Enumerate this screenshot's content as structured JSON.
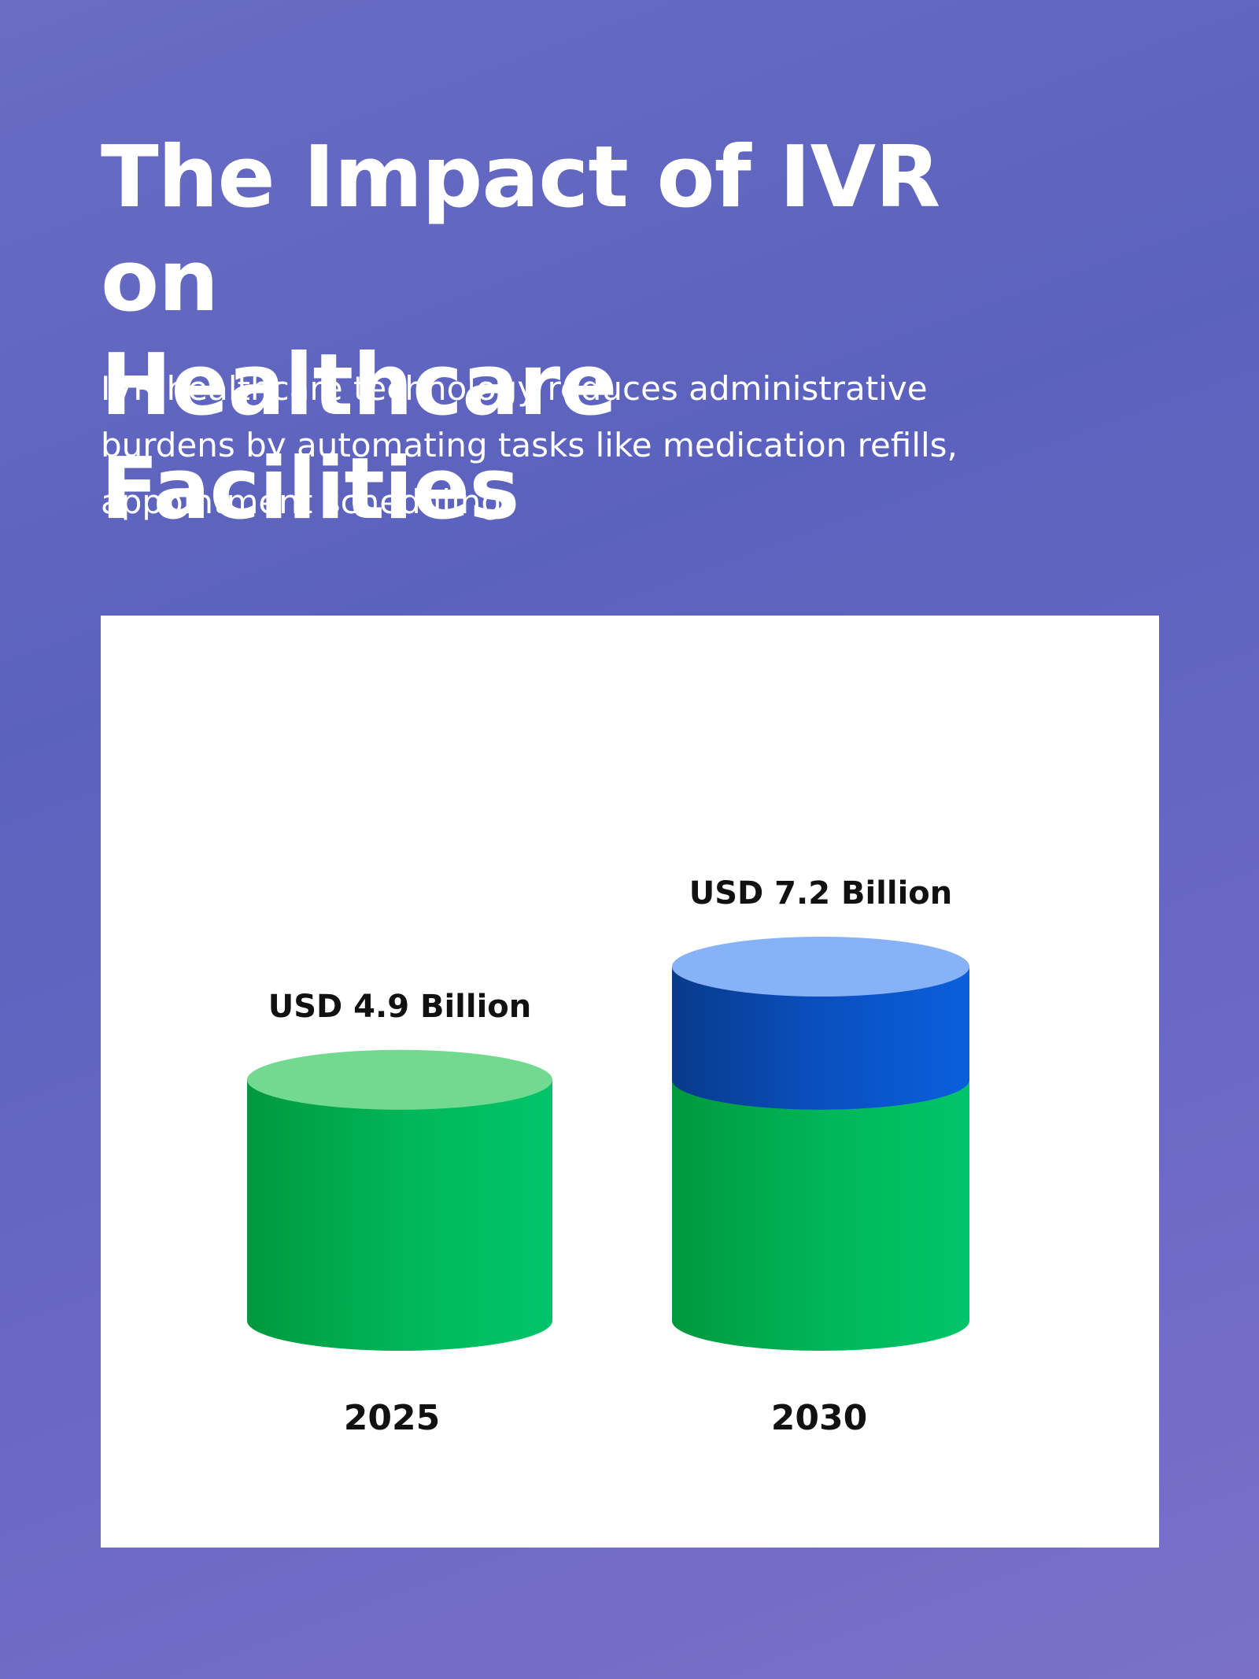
{
  "header": {
    "title_line1": "The Impact of IVR on",
    "title_line2": "Healthcare Facilities",
    "subtitle_line1": "IVR healthcare technology reduces administrative",
    "subtitle_line2": "burdens by automating tasks like medication refills,",
    "subtitle_line3": "appointment scheduling."
  },
  "chart_data": {
    "type": "bar",
    "style": "3d-cylinder",
    "categories": [
      "2025",
      "2030"
    ],
    "values": [
      4.9,
      7.2
    ],
    "data_labels": [
      "USD 4.9 Billion",
      "USD 7.2 Billion"
    ],
    "unit": "USD Billion",
    "ylim": [
      0,
      7.2
    ],
    "title": "",
    "xlabel": "",
    "ylabel": "",
    "grid": false,
    "legend": "none",
    "colors": {
      "base_green": "#00c46a",
      "base_green_top": "#72da90",
      "growth_blue": "#0a5fdc",
      "growth_blue_top": "#87b2f7"
    }
  },
  "colors": {
    "background": "#6366c0",
    "card": "#ffffff",
    "text_light": "#ffffff",
    "text_dark": "#111111"
  }
}
